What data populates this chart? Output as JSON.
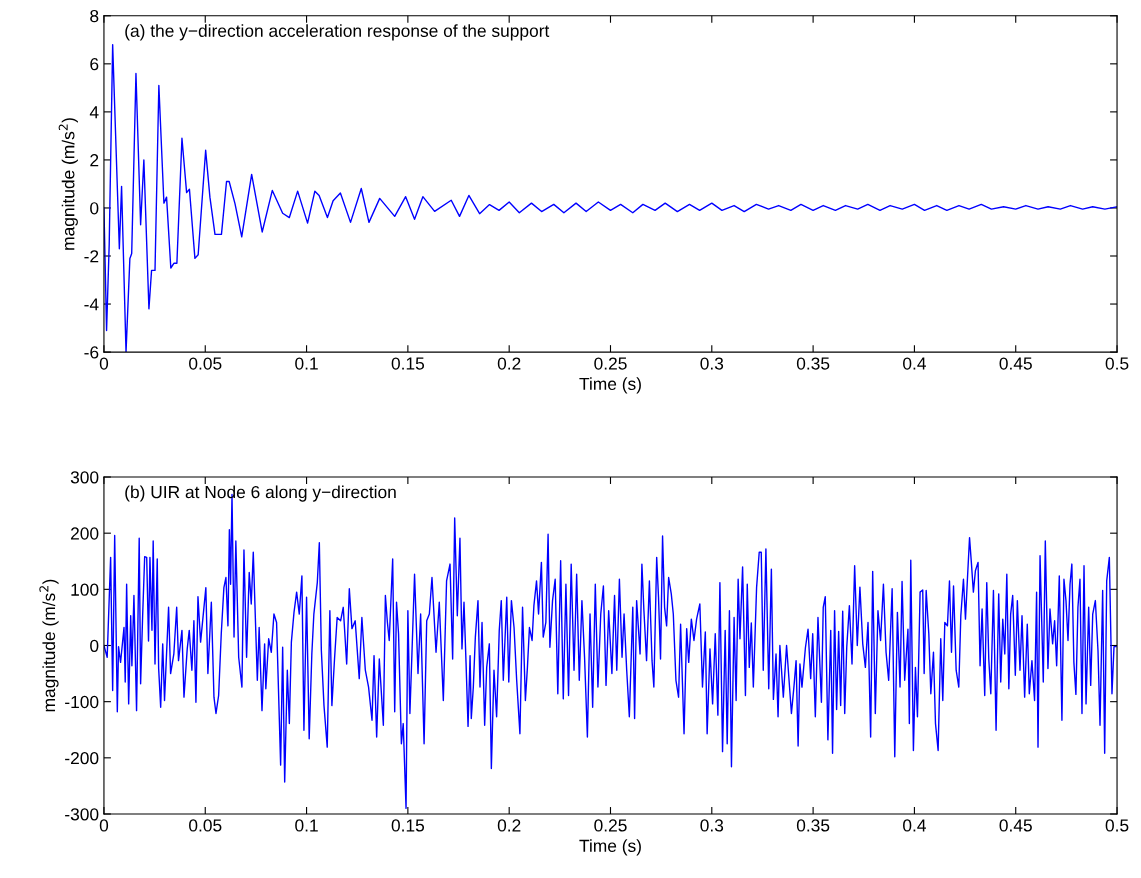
{
  "chart_data": [
    {
      "type": "line",
      "title": "(a) the y−direction acceleration response of the support",
      "xlabel": "Time (s)",
      "ylabel": "magnitude (m/s$^{2}$)",
      "xlim": [
        0,
        0.5
      ],
      "ylim": [
        -6,
        8
      ],
      "xticks": [
        0,
        0.05,
        0.1,
        0.15,
        0.2,
        0.25,
        0.3,
        0.35,
        0.4,
        0.45,
        0.5
      ],
      "yticks": [
        -6,
        -4,
        -2,
        0,
        2,
        4,
        6,
        8
      ],
      "grid": false,
      "series": [
        {
          "color": "#0000ff",
          "x": [
            0,
            0.0013,
            0.0026,
            0.0043,
            0.0076,
            0.0087,
            0.0109,
            0.0128,
            0.0137,
            0.0158,
            0.0181,
            0.0197,
            0.0222,
            0.0235,
            0.0252,
            0.0271,
            0.0296,
            0.0309,
            0.033,
            0.0346,
            0.036,
            0.0385,
            0.0408,
            0.0422,
            0.0449,
            0.0465,
            0.0502,
            0.0523,
            0.0548,
            0.058,
            0.0605,
            0.0618,
            0.0647,
            0.068,
            0.0729,
            0.0745,
            0.0781,
            0.0831,
            0.0882,
            0.0915,
            0.0956,
            0.1005,
            0.1041,
            0.1062,
            0.1103,
            0.1131,
            0.1167,
            0.1217,
            0.127,
            0.1308,
            0.1361,
            0.1435,
            0.1489,
            0.1533,
            0.1574,
            0.1632,
            0.1714,
            0.1755,
            0.1801,
            0.1854,
            0.1903,
            0.195,
            0.2,
            0.205,
            0.211,
            0.216,
            0.222,
            0.227,
            0.233,
            0.238,
            0.244,
            0.25,
            0.255,
            0.261,
            0.266,
            0.272,
            0.277,
            0.283,
            0.289,
            0.294,
            0.3,
            0.305,
            0.311,
            0.316,
            0.322,
            0.328,
            0.333,
            0.339,
            0.344,
            0.35,
            0.355,
            0.361,
            0.366,
            0.372,
            0.377,
            0.383,
            0.388,
            0.394,
            0.4,
            0.405,
            0.411,
            0.416,
            0.422,
            0.427,
            0.433,
            0.438,
            0.444,
            0.45,
            0.455,
            0.461,
            0.466,
            0.472,
            0.477,
            0.483,
            0.488,
            0.494,
            0.5
          ],
          "values": [
            0,
            -5.1,
            -1.5,
            6.8,
            -1.7,
            0.9,
            -6.0,
            -2.1,
            -1.9,
            5.6,
            -0.7,
            2.0,
            -4.2,
            -2.6,
            -2.6,
            5.1,
            0.2,
            0.45,
            -2.5,
            -2.3,
            -2.3,
            2.9,
            0.64,
            0.78,
            -2.1,
            -1.95,
            2.4,
            0.45,
            -1.1,
            -1.1,
            1.1,
            1.1,
            0.17,
            -1.2,
            1.4,
            0.66,
            -1.0,
            0.73,
            -0.22,
            -0.4,
            0.7,
            -0.63,
            0.7,
            0.52,
            -0.4,
            0.3,
            0.62,
            -0.6,
            0.81,
            -0.6,
            0.4,
            -0.35,
            0.47,
            -0.47,
            0.47,
            -0.14,
            0.32,
            -0.35,
            0.52,
            -0.24,
            0.14,
            -0.1,
            0.25,
            -0.2,
            0.2,
            -0.15,
            0.15,
            -0.2,
            0.2,
            -0.15,
            0.25,
            -0.1,
            0.15,
            -0.2,
            0.15,
            -0.1,
            0.2,
            -0.15,
            0.15,
            -0.1,
            0.2,
            -0.1,
            0.1,
            -0.15,
            0.15,
            -0.05,
            0.1,
            -0.1,
            0.15,
            -0.1,
            0.1,
            -0.1,
            0.1,
            -0.05,
            0.15,
            -0.1,
            0.1,
            -0.05,
            0.15,
            -0.1,
            0.1,
            -0.1,
            0.1,
            -0.05,
            0.15,
            -0.05,
            0.05,
            -0.05,
            0.1,
            -0.05,
            0.05,
            -0.05,
            0.1,
            -0.05,
            0.05,
            -0.05,
            0.05
          ]
        }
      ]
    },
    {
      "type": "line",
      "title": "(b) UIR at Node 6 along y−direction",
      "xlabel": "Time (s)",
      "ylabel": "magnitude (m/s$^{2}$)",
      "xlim": [
        0,
        0.5
      ],
      "ylim": [
        -300,
        300
      ],
      "xticks": [
        0,
        0.05,
        0.1,
        0.15,
        0.2,
        0.25,
        0.3,
        0.35,
        0.4,
        0.45,
        0.5
      ],
      "yticks": [
        -300,
        -200,
        -100,
        0,
        100,
        200,
        300
      ],
      "grid": false,
      "series": [
        {
          "color": "#0000ff",
          "x": [
            0,
            0.0016,
            0.0033,
            0.0043,
            0.0053,
            0.0066,
            0.0072,
            0.0082,
            0.0099,
            0.0105,
            0.0112,
            0.0122,
            0.0132,
            0.0138,
            0.0148,
            0.0161,
            0.0174,
            0.0181,
            0.0191,
            0.0201,
            0.0211,
            0.022,
            0.0227,
            0.0237,
            0.0243,
            0.0252,
            0.0263,
            0.027,
            0.028,
            0.029,
            0.0299,
            0.0319,
            0.0329,
            0.0345,
            0.0359,
            0.0368,
            0.0385,
            0.0395,
            0.0411,
            0.0421,
            0.0434,
            0.0444,
            0.0454,
            0.0464,
            0.0477,
            0.0503,
            0.0513,
            0.053,
            0.0543,
            0.0553,
            0.0566,
            0.0579,
            0.0592,
            0.0602,
            0.0612,
            0.0619,
            0.0625,
            0.0632,
            0.0642,
            0.0651,
            0.0665,
            0.0681,
            0.0691,
            0.0704,
            0.0717,
            0.0727,
            0.0737,
            0.0757,
            0.0766,
            0.078,
            0.0793,
            0.0799,
            0.0813,
            0.0826,
            0.0839,
            0.0852,
            0.0872,
            0.0882,
            0.0892,
            0.0905,
            0.0915,
            0.0925,
            0.0938,
            0.0951,
            0.0964,
            0.0977,
            0.0987,
            0.1,
            0.1013,
            0.1026,
            0.1036,
            0.1053,
            0.1063,
            0.1073,
            0.1086,
            0.1102,
            0.1115,
            0.1125,
            0.1138,
            0.1151,
            0.1168,
            0.1181,
            0.1198,
            0.1211,
            0.1224,
            0.124,
            0.126,
            0.1273,
            0.129,
            0.1306,
            0.1323,
            0.1333,
            0.1346,
            0.1359,
            0.1379,
            0.1389,
            0.1399,
            0.1408,
            0.1425,
            0.1435,
            0.1444,
            0.1454,
            0.1468,
            0.1477,
            0.1491,
            0.15,
            0.151,
            0.152,
            0.1533,
            0.155,
            0.1563,
            0.158,
            0.1593,
            0.1606,
            0.1619,
            0.1639,
            0.1655,
            0.1675,
            0.1691,
            0.1708,
            0.1721,
            0.1731,
            0.1744,
            0.1757,
            0.1767,
            0.1777,
            0.1787,
            0.1797,
            0.1807,
            0.1813,
            0.1823,
            0.1833,
            0.1846,
            0.1856,
            0.1866,
            0.1879,
            0.1889,
            0.1902,
            0.1912,
            0.1925,
            0.1938,
            0.1951,
            0.1961,
            0.1971,
            0.1988,
            0.1998,
            0.2011,
            0.2024,
            0.2037,
            0.2053,
            0.2066,
            0.208,
            0.209,
            0.21,
            0.2113,
            0.2122,
            0.2135,
            0.2145,
            0.2159,
            0.2168,
            0.2181,
            0.2192,
            0.2201,
            0.2214,
            0.2227,
            0.224,
            0.2254,
            0.2267,
            0.228,
            0.2293,
            0.2306,
            0.232,
            0.2333,
            0.2346,
            0.2359,
            0.2372,
            0.2386,
            0.2399,
            0.2412,
            0.2425,
            0.2438,
            0.2452,
            0.2465,
            0.2478,
            0.2491,
            0.2507,
            0.252,
            0.2531,
            0.2544,
            0.2557,
            0.2567,
            0.258,
            0.2593,
            0.261,
            0.2619,
            0.2629,
            0.2646,
            0.2655,
            0.2665,
            0.2678,
            0.2692,
            0.2705,
            0.2714,
            0.2728,
            0.2737,
            0.2747,
            0.2757,
            0.2767,
            0.2777,
            0.2787,
            0.28,
            0.281,
            0.2823,
            0.2836,
            0.2846,
            0.2863,
            0.2876,
            0.2886,
            0.2899,
            0.2912,
            0.2925,
            0.2941,
            0.2954,
            0.2968,
            0.2977,
            0.2991,
            0.3004,
            0.3017,
            0.303,
            0.304,
            0.3053,
            0.3066,
            0.3076,
            0.3087,
            0.3097,
            0.311,
            0.312,
            0.313,
            0.3139,
            0.3152,
            0.3166,
            0.3175,
            0.3185,
            0.3195,
            0.3205,
            0.3221,
            0.3234,
            0.3244,
            0.3254,
            0.3267,
            0.3281,
            0.3294,
            0.3304,
            0.3317,
            0.3327,
            0.3336,
            0.3353,
            0.3369,
            0.3393,
            0.3406,
            0.3416,
            0.3426,
            0.3435,
            0.3445,
            0.3462,
            0.3475,
            0.3488,
            0.3498,
            0.3511,
            0.3524,
            0.3541,
            0.355,
            0.356,
            0.3573,
            0.3587,
            0.3596,
            0.3606,
            0.3616,
            0.3626,
            0.3636,
            0.3646,
            0.3656,
            0.3666,
            0.3679,
            0.3692,
            0.3705,
            0.3718,
            0.3731,
            0.3745,
            0.3758,
            0.3771,
            0.3784,
            0.3794,
            0.3807,
            0.382,
            0.3833,
            0.3847,
            0.386,
            0.3873,
            0.389,
            0.3903,
            0.3916,
            0.3929,
            0.3939,
            0.3952,
            0.3968,
            0.3975,
            0.3982,
            0.3995,
            0.4005,
            0.4015,
            0.4028,
            0.4041,
            0.4048,
            0.4058,
            0.4071,
            0.4081,
            0.4094,
            0.4104,
            0.4117,
            0.413,
            0.414,
            0.415,
            0.4163,
            0.4173,
            0.4183,
            0.4193,
            0.4206,
            0.4219,
            0.4229,
            0.4242,
            0.4252,
            0.4262,
            0.4272,
            0.4281,
            0.4291,
            0.4301,
            0.4314,
            0.4324,
            0.4334,
            0.4347,
            0.4357,
            0.4367,
            0.4377,
            0.439,
            0.4403,
            0.4416,
            0.4426,
            0.4436,
            0.4446,
            0.4456,
            0.4466,
            0.4475,
            0.4485,
            0.4498,
            0.4508,
            0.4521,
            0.4531,
            0.4544,
            0.4557,
            0.4567,
            0.458,
            0.4593,
            0.4603,
            0.461,
            0.462,
            0.4636,
            0.4646,
            0.4659,
            0.4669,
            0.4682,
            0.4692,
            0.4702,
            0.4715,
            0.4728,
            0.4738,
            0.4748,
            0.4758,
            0.4768,
            0.4777,
            0.4787,
            0.4797,
            0.4807,
            0.4817,
            0.4827,
            0.4837,
            0.4847,
            0.486,
            0.487,
            0.488,
            0.4893,
            0.4906,
            0.4916,
            0.4929,
            0.4939,
            0.4949,
            0.4962,
            0.4975,
            0.4985,
            0.4995
          ],
          "values": [
            0,
            -21,
            157,
            -80,
            196,
            -118,
            -2,
            -30,
            32,
            -65,
            109,
            -104,
            53,
            -36,
            89,
            -116,
            191,
            -68,
            53,
            158,
            157,
            8,
            157,
            27,
            186,
            -33,
            154,
            -41,
            -110,
            3,
            -98,
            68,
            -50,
            -15,
            68,
            -27,
            27,
            -92,
            -6,
            27,
            -44,
            44,
            -101,
            87,
            6,
            103,
            -50,
            77,
            -92,
            -121,
            -89,
            21,
            103,
            121,
            35,
            206,
            109,
            269,
            15,
            186,
            -21,
            -74,
            170,
            -21,
            130,
            74,
            166,
            -62,
            32,
            -116,
            3,
            -77,
            12,
            -12,
            56,
            41,
            -213,
            -3,
            -243,
            -44,
            -139,
            6,
            59,
            95,
            56,
            124,
            -151,
            86,
            -166,
            -15,
            56,
            112,
            183,
            -9,
            -107,
            -181,
            62,
            -107,
            -24,
            50,
            44,
            68,
            -33,
            101,
            30,
            44,
            -59,
            50,
            -44,
            -74,
            -133,
            -18,
            -163,
            -24,
            -142,
            89,
            41,
            9,
            154,
            -118,
            77,
            21,
            -175,
            -139,
            -290,
            62,
            -121,
            -15,
            127,
            -50,
            56,
            -175,
            44,
            56,
            121,
            -12,
            77,
            -98,
            115,
            145,
            -24,
            227,
            53,
            191,
            -6,
            77,
            -30,
            -144,
            -18,
            -130,
            -74,
            15,
            80,
            -74,
            41,
            -142,
            -39,
            3,
            -219,
            -44,
            -127,
            27,
            80,
            -62,
            86,
            -65,
            80,
            32,
            -62,
            -157,
            68,
            -98,
            -39,
            32,
            9,
            71,
            115,
            56,
            148,
            15,
            41,
            198,
            -3,
            80,
            118,
            -86,
            151,
            -95,
            109,
            -89,
            145,
            -44,
            127,
            -62,
            80,
            -21,
            -163,
            56,
            -110,
            109,
            -74,
            56,
            106,
            -71,
            62,
            -50,
            89,
            -44,
            118,
            -21,
            56,
            -44,
            -127,
            68,
            -130,
            80,
            -15,
            145,
            62,
            -27,
            115,
            -27,
            -74,
            157,
            86,
            -24,
            195,
            68,
            35,
            121,
            92,
            56,
            -62,
            -92,
            38,
            -157,
            30,
            -30,
            47,
            9,
            47,
            74,
            -74,
            24,
            -157,
            -6,
            -104,
            21,
            -124,
            112,
            -189,
            27,
            -175,
            62,
            -216,
            50,
            -98,
            118,
            12,
            140,
            -89,
            109,
            -39,
            40,
            -74,
            103,
            166,
            166,
            -44,
            172,
            -77,
            136,
            -96,
            -15,
            -127,
            0,
            -92,
            0,
            -121,
            -71,
            -27,
            -179,
            -33,
            -74,
            -4,
            29,
            -59,
            21,
            -127,
            50,
            -101,
            68,
            87,
            -168,
            27,
            -192,
            62,
            -114,
            25,
            -107,
            61,
            -121,
            -3,
            71,
            -33,
            142,
            0,
            104,
            3,
            -39,
            41,
            -163,
            132,
            -121,
            62,
            9,
            109,
            -12,
            -62,
            101,
            -198,
            59,
            -74,
            114,
            -62,
            29,
            -139,
            152,
            -187,
            -39,
            -127,
            95,
            99,
            -50,
            98,
            21,
            -86,
            -12,
            -139,
            -187,
            12,
            -98,
            41,
            35,
            115,
            -12,
            106,
            -44,
            -74,
            53,
            118,
            47,
            121,
            192,
            148,
            95,
            133,
            148,
            -36,
            65,
            -89,
            112,
            -24,
            -86,
            98,
            -151,
            92,
            -65,
            47,
            -15,
            127,
            -77,
            56,
            89,
            -53,
            80,
            -44,
            53,
            -92,
            38,
            -86,
            -27,
            -98,
            95,
            -181,
            160,
            -65,
            186,
            -41,
            65,
            3,
            44,
            -36,
            124,
            -133,
            118,
            80,
            9,
            109,
            145,
            -30,
            -87,
            68,
            118,
            -121,
            142,
            -104,
            68,
            -71,
            56,
            80,
            -9,
            -142,
            98,
            -192,
            115,
            157,
            -86,
            -2,
            -2
          ]
        }
      ]
    }
  ]
}
